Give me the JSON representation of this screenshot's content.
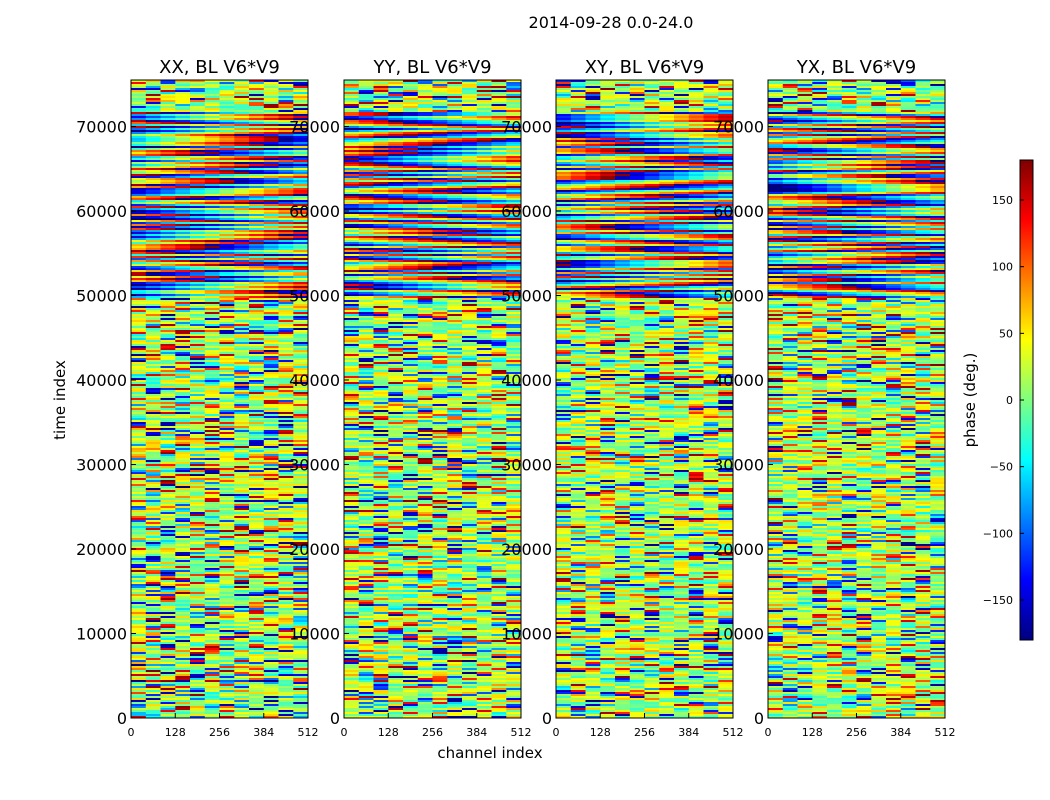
{
  "chart_data": {
    "type": "heatmap",
    "suptitle": "2014-09-28 0.0-24.0",
    "xlabel": "channel index",
    "ylabel": "time index",
    "xlim": [
      0,
      512
    ],
    "ylim": [
      0,
      75500
    ],
    "xticks": [
      0,
      128,
      256,
      384,
      512
    ],
    "yticks": [
      0,
      10000,
      20000,
      30000,
      40000,
      50000,
      60000,
      70000
    ],
    "grid": false,
    "colorbar": {
      "label": "phase (deg.)",
      "range": [
        -180,
        180
      ],
      "ticks": [
        -150,
        -100,
        -50,
        0,
        50,
        100,
        150
      ],
      "colormap": "jet",
      "placement": "right"
    },
    "panels": [
      {
        "title": "XX, BL V6*V9"
      },
      {
        "title": "YY, BL V6*V9"
      },
      {
        "title": "XY, BL V6*V9"
      },
      {
        "title": "YX, BL V6*V9"
      }
    ]
  }
}
